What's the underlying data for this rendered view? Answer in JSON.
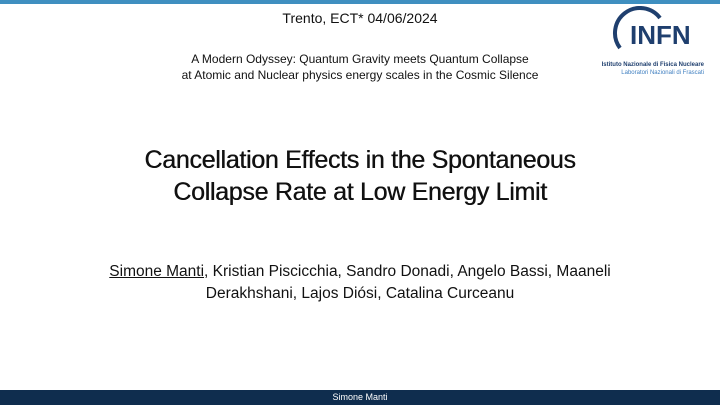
{
  "header": {
    "event": "Trento, ECT* 04/06/2024",
    "subtitle_lines": [
      "A Modern Odyssey: Quantum Gravity meets Quantum Collapse",
      "at Atomic and Nuclear physics energy scales in the Cosmic Silence"
    ]
  },
  "logo": {
    "name": "INFN",
    "line1": "Istituto Nazionale di Fisica Nucleare",
    "line2": "Laboratori Nazionali di Frascati"
  },
  "title_lines": [
    "Cancellation Effects in the Spontaneous",
    "Collapse Rate at Low Energy Limit"
  ],
  "authors": {
    "presenter": "Simone Manti",
    "line1_rest": ", Kristian Piscicchia, Sandro Donadi, Angelo Bassi, Maaneli",
    "line2": "Derakhshani, Lajos Diósi, Catalina Curceanu"
  },
  "footer": "Simone Manti"
}
